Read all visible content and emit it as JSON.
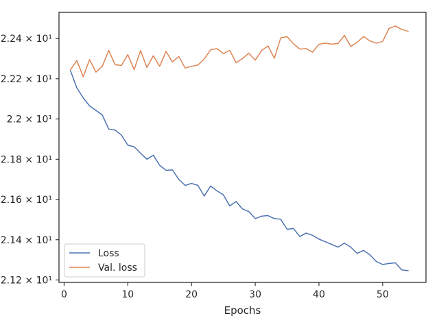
{
  "chart_data": {
    "type": "line",
    "title": "",
    "xlabel": "Epochs",
    "ylabel": "",
    "xlim": [
      -0.8,
      56.8
    ],
    "ylim": [
      21.188,
      22.53
    ],
    "grid": false,
    "legend_location": "lower-left",
    "x_ticks": [
      {
        "value": 0,
        "label": "0"
      },
      {
        "value": 10,
        "label": "10"
      },
      {
        "value": 20,
        "label": "20"
      },
      {
        "value": 30,
        "label": "30"
      },
      {
        "value": 40,
        "label": "40"
      },
      {
        "value": 50,
        "label": "50"
      }
    ],
    "y_ticks": [
      {
        "value": 22.4,
        "label": "2.24 × 10¹"
      },
      {
        "value": 22.2,
        "label": "2.22 × 10¹"
      },
      {
        "value": 22.0,
        "label": "2.2 × 10¹"
      },
      {
        "value": 21.8,
        "label": "2.18 × 10¹"
      },
      {
        "value": 21.6,
        "label": "2.16 × 10¹"
      },
      {
        "value": 21.4,
        "label": "2.14 × 10¹"
      },
      {
        "value": 21.2,
        "label": "2.12 × 10¹"
      }
    ],
    "x": [
      1,
      2,
      3,
      4,
      5,
      6,
      7,
      8,
      9,
      10,
      11,
      12,
      13,
      14,
      15,
      16,
      17,
      18,
      19,
      20,
      21,
      22,
      23,
      24,
      25,
      26,
      27,
      28,
      29,
      30,
      31,
      32,
      33,
      34,
      35,
      36,
      37,
      38,
      39,
      40,
      41,
      42,
      43,
      44,
      45,
      46,
      47,
      48,
      49,
      50,
      51,
      52,
      53,
      54
    ],
    "series": [
      {
        "name": "Loss",
        "color": "#4c72b0",
        "values": [
          22.24,
          22.155,
          22.105,
          22.065,
          22.043,
          22.02,
          21.95,
          21.945,
          21.92,
          21.87,
          21.862,
          21.83,
          21.8,
          21.82,
          21.77,
          21.745,
          21.747,
          21.7,
          21.67,
          21.68,
          21.67,
          21.617,
          21.667,
          21.643,
          21.623,
          21.568,
          21.59,
          21.553,
          21.54,
          21.505,
          21.517,
          21.52,
          21.505,
          21.502,
          21.452,
          21.456,
          21.416,
          21.433,
          21.422,
          21.403,
          21.39,
          21.377,
          21.363,
          21.383,
          21.363,
          21.332,
          21.347,
          21.325,
          21.292,
          21.277,
          21.282,
          21.285,
          21.25,
          21.246
        ]
      },
      {
        "name": "Val. loss",
        "color": "#dd8452",
        "values": [
          22.245,
          22.29,
          22.21,
          22.295,
          22.233,
          22.262,
          22.341,
          22.27,
          22.266,
          22.32,
          22.245,
          22.34,
          22.256,
          22.314,
          22.262,
          22.336,
          22.283,
          22.311,
          22.253,
          22.262,
          22.268,
          22.298,
          22.344,
          22.35,
          22.325,
          22.341,
          22.28,
          22.3,
          22.327,
          22.292,
          22.34,
          22.363,
          22.302,
          22.403,
          22.409,
          22.374,
          22.347,
          22.35,
          22.332,
          22.371,
          22.377,
          22.372,
          22.375,
          22.415,
          22.36,
          22.381,
          22.41,
          22.388,
          22.377,
          22.385,
          22.45,
          22.462,
          22.445,
          22.436
        ]
      }
    ]
  }
}
